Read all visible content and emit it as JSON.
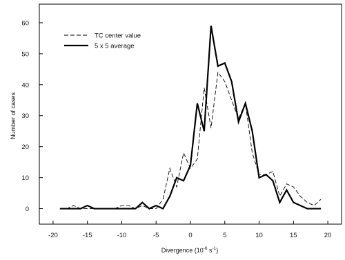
{
  "chart_data": {
    "type": "line",
    "xlabel": "Divergence (10",
    "xlabel_sup": "-6",
    "xlabel_mid": " s",
    "xlabel_sup2": "-1",
    "xlabel_end": ")",
    "ylabel": "Number of cases",
    "xlim": [
      -22,
      22
    ],
    "ylim": [
      -5,
      66
    ],
    "xticks": [
      -20,
      -15,
      -10,
      -5,
      0,
      5,
      10,
      15,
      20
    ],
    "xtick_labels": [
      "-20",
      "-15",
      "-10",
      "-5",
      "0",
      "5",
      "10",
      "15",
      "20"
    ],
    "yticks": [
      0,
      10,
      20,
      30,
      40,
      50,
      60
    ],
    "ytick_labels": [
      "0",
      "10",
      "20",
      "30",
      "40",
      "50",
      "60"
    ],
    "grid": false,
    "legend_position": "top-left",
    "series": [
      {
        "name": "TC center value",
        "style": "dashed",
        "color": "#000000",
        "x": [
          -19,
          -18,
          -17,
          -16,
          -15,
          -14,
          -13,
          -12,
          -11,
          -10,
          -9,
          -8,
          -7,
          -6,
          -5,
          -4,
          -3,
          -2,
          -1,
          0,
          1,
          2,
          3,
          4,
          5,
          6,
          7,
          8,
          9,
          10,
          11,
          12,
          13,
          14,
          15,
          16,
          17,
          18,
          19
        ],
        "y": [
          0,
          0,
          1,
          0,
          0,
          0,
          0,
          0,
          0,
          1,
          1,
          0,
          1,
          0,
          0,
          3,
          13,
          7,
          18,
          13,
          16,
          39,
          26,
          44,
          41,
          35,
          29,
          34,
          18,
          11,
          11,
          12,
          4,
          8,
          7,
          4,
          2,
          1,
          3
        ]
      },
      {
        "name": "5 x 5 average",
        "style": "solid",
        "color": "#000000",
        "x": [
          -19,
          -18,
          -17,
          -16,
          -15,
          -14,
          -13,
          -12,
          -11,
          -10,
          -9,
          -8,
          -7,
          -6,
          -5,
          -4,
          -3,
          -2,
          -1,
          0,
          1,
          2,
          3,
          4,
          5,
          6,
          7,
          8,
          9,
          10,
          11,
          12,
          13,
          14,
          15,
          16,
          17,
          18,
          19
        ],
        "y": [
          0,
          0,
          0,
          0,
          1,
          0,
          0,
          0,
          0,
          0,
          0,
          0,
          2,
          0,
          1,
          0,
          4,
          10,
          9,
          14,
          34,
          25,
          59,
          46,
          47,
          41,
          28,
          34,
          25,
          10,
          11,
          9,
          2,
          6,
          2,
          1,
          0,
          0,
          0
        ]
      }
    ]
  }
}
